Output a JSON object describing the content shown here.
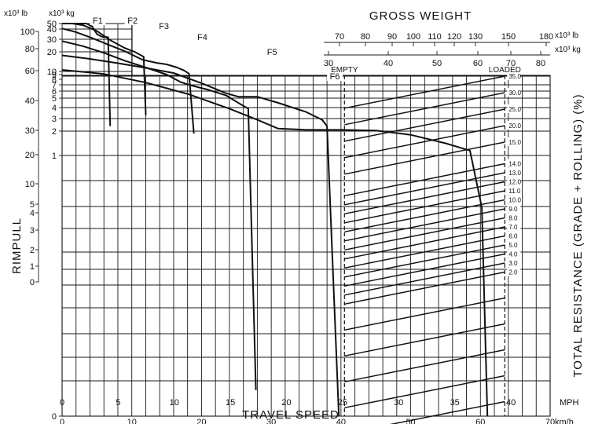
{
  "chart_data": {
    "type": "line",
    "title": "GROSS WEIGHT",
    "xlabel": "TRAVEL SPEED",
    "ylabel": "RIMPULL",
    "right_label": "TOTAL RESISTANCE (GRADE + ROLLING)  (%)",
    "unit_kmh": "km/h",
    "unit_mph": "MPH",
    "unit_lb": "x10³ lb",
    "unit_kg": "x10³ kg",
    "unit_kg_right": "x10³ kg",
    "unit_lb_right": "x10³ lb",
    "x_kmh_ticks": [
      "0",
      "10",
      "20",
      "30",
      "40",
      "50",
      "60",
      "70"
    ],
    "x_mph_ticks": [
      "0",
      "5",
      "10",
      "15",
      "20",
      "25",
      "30",
      "35",
      "40"
    ],
    "lb_ticks": [
      "100",
      "80",
      "60",
      "40",
      "30",
      "20",
      "10",
      "5",
      "4",
      "3",
      "2",
      "1",
      "0"
    ],
    "kg_ticks": [
      "50",
      "40",
      "30",
      "20",
      "10",
      "9",
      "8",
      "7",
      "6",
      "5",
      "4",
      "3",
      "2",
      "1",
      "0"
    ],
    "gw_lb_ticks": [
      "70",
      "80",
      "90",
      "100",
      "110",
      "120",
      "130",
      "150",
      "180"
    ],
    "gw_kg_ticks": [
      "30",
      "40",
      "50",
      "60",
      "70",
      "80"
    ],
    "empty_label": "EMPTY",
    "loaded_label": "LOADED",
    "resistance_labels": [
      "35.0",
      "30.0",
      "25.0",
      "20.0",
      "15.0",
      "14.0",
      "13.0",
      "12.0",
      "11.0",
      "10.0",
      "9.0",
      "8.0",
      "7.0",
      "6.0",
      "5.0",
      "4.0",
      "3.0",
      "2.0"
    ],
    "series": [
      {
        "name": "F1",
        "label": "F1",
        "points": [
          [
            0,
            96
          ],
          [
            1.2,
            86
          ],
          [
            2.5,
            68
          ],
          [
            3.5,
            55
          ],
          [
            4.3,
            45
          ],
          [
            5.0,
            35
          ],
          [
            5.7,
            32.5
          ],
          [
            6.6,
            32
          ],
          [
            6.9,
            2.4
          ]
        ]
      },
      {
        "name": "F2",
        "label": "F2",
        "points": [
          [
            0,
            63
          ],
          [
            1.5,
            55
          ],
          [
            3,
            47
          ],
          [
            5,
            38
          ],
          [
            7,
            29
          ],
          [
            9,
            23
          ],
          [
            10.4,
            20
          ],
          [
            11.7,
            17.5
          ],
          [
            12.0,
            3.3
          ]
        ]
      },
      {
        "name": "F3",
        "label": "F3",
        "points": [
          [
            0,
            41
          ],
          [
            2,
            37
          ],
          [
            4,
            32
          ],
          [
            6.5,
            26
          ],
          [
            9,
            20.5
          ],
          [
            11.5,
            16
          ],
          [
            13.5,
            14.4
          ],
          [
            15,
            13.6
          ],
          [
            16.5,
            12
          ],
          [
            17.5,
            10.5
          ],
          [
            18.2,
            9.3
          ],
          [
            18.9,
            1.9
          ]
        ]
      },
      {
        "name": "F4",
        "label": "F4",
        "points": [
          [
            0,
            28.5
          ],
          [
            3,
            24.5
          ],
          [
            6,
            19.5
          ],
          [
            9,
            15.5
          ],
          [
            12,
            12
          ],
          [
            15,
            9
          ],
          [
            17,
            7.5
          ],
          [
            18.5,
            6.9
          ],
          [
            21,
            6.2
          ],
          [
            23.5,
            5.4
          ],
          [
            25.5,
            4.4
          ],
          [
            26.7,
            3.9
          ],
          [
            27.8,
            0.1
          ]
        ]
      },
      {
        "name": "F5",
        "label": "F5",
        "points": [
          [
            0,
            18.2
          ],
          [
            4,
            16.4
          ],
          [
            8,
            14.2
          ],
          [
            12,
            11.8
          ],
          [
            16,
            9.5
          ],
          [
            20,
            7.3
          ],
          [
            23.5,
            5.7
          ],
          [
            25.3,
            5.2
          ],
          [
            28,
            5.2
          ],
          [
            31,
            4.5
          ],
          [
            35,
            3.6
          ],
          [
            37.3,
            2.9
          ],
          [
            38.0,
            2.4
          ],
          [
            39.7,
            0
          ]
        ]
      },
      {
        "name": "F6",
        "label": "F6",
        "points": [
          [
            0,
            10.8
          ],
          [
            6,
            9.2
          ],
          [
            12,
            7.4
          ],
          [
            18,
            5.6
          ],
          [
            24,
            3.9
          ],
          [
            28,
            2.9
          ],
          [
            31,
            2.2
          ],
          [
            35,
            2.1
          ],
          [
            40,
            2.1
          ],
          [
            45,
            2.05
          ],
          [
            50,
            1.85
          ],
          [
            55,
            1.5
          ],
          [
            58.5,
            1.2
          ],
          [
            60.2,
            0.8
          ],
          [
            61,
            0
          ]
        ]
      }
    ],
    "resistance_lines": [
      35,
      30,
      25,
      20,
      15,
      14,
      13,
      12,
      11,
      10,
      9,
      8,
      7,
      6,
      5,
      4,
      3,
      2
    ],
    "grid": true
  }
}
